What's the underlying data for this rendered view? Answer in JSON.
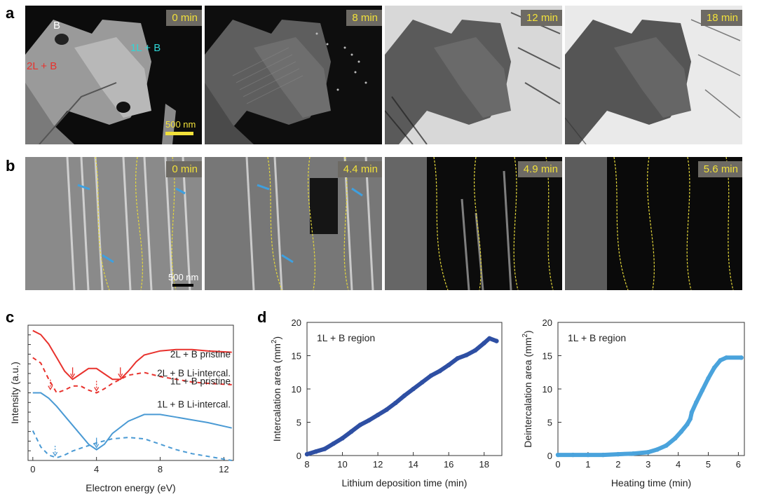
{
  "figure": {
    "panel_labels": [
      "a",
      "b",
      "c",
      "d"
    ]
  },
  "panel_a": {
    "times": [
      "0 min",
      "8 min",
      "12 min",
      "18 min"
    ],
    "label_b": "B",
    "label_1l": "1L + B",
    "label_2l": "2L + B",
    "scale_bar": "500 nm",
    "colors": {
      "label_1l": "#2fd6d6",
      "label_2l": "#e8322d",
      "label_b": "#ffffff",
      "scale": "#f2e13a"
    }
  },
  "panel_b": {
    "times": [
      "0 min",
      "4.4 min",
      "4.9 min",
      "5.6 min"
    ],
    "scale_bar": "500 nm",
    "colors": {
      "boundary": "#e6d93a",
      "arrow": "#3ea0e0"
    }
  },
  "panel_c": {
    "chart_data": {
      "type": "line",
      "xlabel": "Electron energy (eV)",
      "ylabel": "Intensity (a.u.)",
      "xlim": [
        -0.3,
        12.6
      ],
      "xticks": [
        0,
        4,
        8,
        12
      ],
      "series": [
        {
          "name": "2L + B pristine",
          "style": "solid",
          "color": "#e8322d",
          "x": [
            0,
            0.5,
            1,
            1.5,
            2,
            2.5,
            3,
            3.5,
            4,
            4.5,
            5,
            5.5,
            6,
            6.5,
            7,
            8,
            9,
            10,
            11,
            12.5
          ],
          "y": [
            0.96,
            0.93,
            0.86,
            0.76,
            0.66,
            0.6,
            0.64,
            0.68,
            0.68,
            0.64,
            0.6,
            0.6,
            0.66,
            0.73,
            0.78,
            0.81,
            0.82,
            0.82,
            0.81,
            0.8
          ]
        },
        {
          "name": "2L + B Li-intercal.",
          "style": "dashed",
          "color": "#e8322d",
          "x": [
            0,
            0.5,
            1,
            1.5,
            2,
            2.5,
            3,
            3.5,
            4,
            4.5,
            5,
            6,
            7,
            8,
            9,
            10,
            11,
            12.5
          ],
          "y": [
            0.76,
            0.72,
            0.6,
            0.5,
            0.52,
            0.55,
            0.55,
            0.52,
            0.5,
            0.53,
            0.57,
            0.63,
            0.65,
            0.62,
            0.6,
            0.58,
            0.57,
            0.56
          ]
        },
        {
          "name": "1L + B pristine",
          "style": "solid",
          "color": "#4a9ad4",
          "x": [
            0,
            0.5,
            1,
            1.5,
            2,
            2.5,
            3,
            3.5,
            4,
            4.5,
            5,
            6,
            7,
            8,
            9,
            10,
            11,
            12.5
          ],
          "y": [
            0.5,
            0.5,
            0.46,
            0.4,
            0.33,
            0.26,
            0.19,
            0.12,
            0.08,
            0.12,
            0.2,
            0.29,
            0.34,
            0.34,
            0.32,
            0.3,
            0.28,
            0.24
          ]
        },
        {
          "name": "1L + B Li-intercal.",
          "style": "dashed",
          "color": "#4a9ad4",
          "x": [
            0,
            0.5,
            1,
            1.5,
            2,
            2.5,
            3,
            3.5,
            4,
            5,
            6,
            7,
            8,
            9,
            10,
            11,
            12.5
          ],
          "y": [
            0.22,
            0.1,
            0.04,
            0.02,
            0.04,
            0.07,
            0.09,
            0.11,
            0.13,
            0.16,
            0.17,
            0.16,
            0.12,
            0.08,
            0.05,
            0.03,
            0.0
          ]
        }
      ],
      "labels": [
        "2L + B pristine",
        "2L + B Li-intercal.",
        "1L + B pristine",
        "1L + B Li-intercal."
      ],
      "arrows": [
        {
          "x": 2.5,
          "y": 0.6,
          "style": "solid",
          "color": "#e8322d"
        },
        {
          "x": 5.5,
          "y": 0.6,
          "style": "solid",
          "color": "#e8322d"
        },
        {
          "x": 1.1,
          "y": 0.51,
          "style": "dashed",
          "color": "#e8322d"
        },
        {
          "x": 4.0,
          "y": 0.5,
          "style": "dashed",
          "color": "#e8322d"
        },
        {
          "x": 4.0,
          "y": 0.08,
          "style": "solid",
          "color": "#4a9ad4"
        },
        {
          "x": 1.4,
          "y": 0.02,
          "style": "dashed",
          "color": "#4a9ad4"
        }
      ]
    }
  },
  "panel_d": {
    "chart_data": [
      {
        "type": "scatter",
        "annotation": "1L + B region",
        "xlabel": "Lithium deposition time (min)",
        "ylabel": "Intercalation area (mm",
        "ylabel_sup": "2",
        "ylabel_end": ")",
        "xlim": [
          8,
          19
        ],
        "ylim": [
          0,
          20
        ],
        "xticks": [
          8,
          10,
          12,
          14,
          16,
          18
        ],
        "yticks": [
          0,
          5,
          10,
          15,
          20
        ],
        "color": "#2e4fa3",
        "x": [
          8.0,
          8.5,
          9.0,
          9.5,
          10.0,
          10.5,
          11.0,
          11.5,
          12.0,
          12.5,
          13.0,
          13.5,
          14.0,
          14.5,
          15.0,
          15.5,
          16.0,
          16.5,
          17.0,
          17.5,
          18.0,
          18.3,
          18.7
        ],
        "y": [
          0.2,
          0.6,
          1.0,
          1.8,
          2.6,
          3.6,
          4.6,
          5.3,
          6.1,
          6.9,
          7.9,
          9.0,
          10.0,
          11.0,
          12.0,
          12.7,
          13.6,
          14.6,
          15.1,
          15.8,
          16.9,
          17.6,
          17.2
        ]
      },
      {
        "type": "scatter",
        "annotation": "1L + B region",
        "xlabel": "Heating time (min)",
        "ylabel": "Deintercalation area (mm",
        "ylabel_sup": "2",
        "ylabel_end": ")",
        "xlim": [
          0,
          6.2
        ],
        "ylim": [
          0,
          20
        ],
        "xticks": [
          0,
          1,
          2,
          3,
          4,
          5,
          6
        ],
        "yticks": [
          0,
          5,
          10,
          15,
          20
        ],
        "color": "#4aa3dc",
        "x": [
          0,
          0.5,
          1.0,
          1.5,
          2.0,
          2.5,
          3.0,
          3.3,
          3.6,
          3.9,
          4.1,
          4.3,
          4.4,
          4.45,
          4.6,
          4.8,
          5.0,
          5.2,
          5.4,
          5.6,
          6.1
        ],
        "y": [
          0.1,
          0.1,
          0.1,
          0.1,
          0.2,
          0.3,
          0.5,
          0.9,
          1.5,
          2.6,
          3.6,
          4.7,
          5.5,
          6.5,
          8.0,
          9.8,
          11.6,
          13.2,
          14.3,
          14.7,
          14.7
        ]
      }
    ]
  }
}
